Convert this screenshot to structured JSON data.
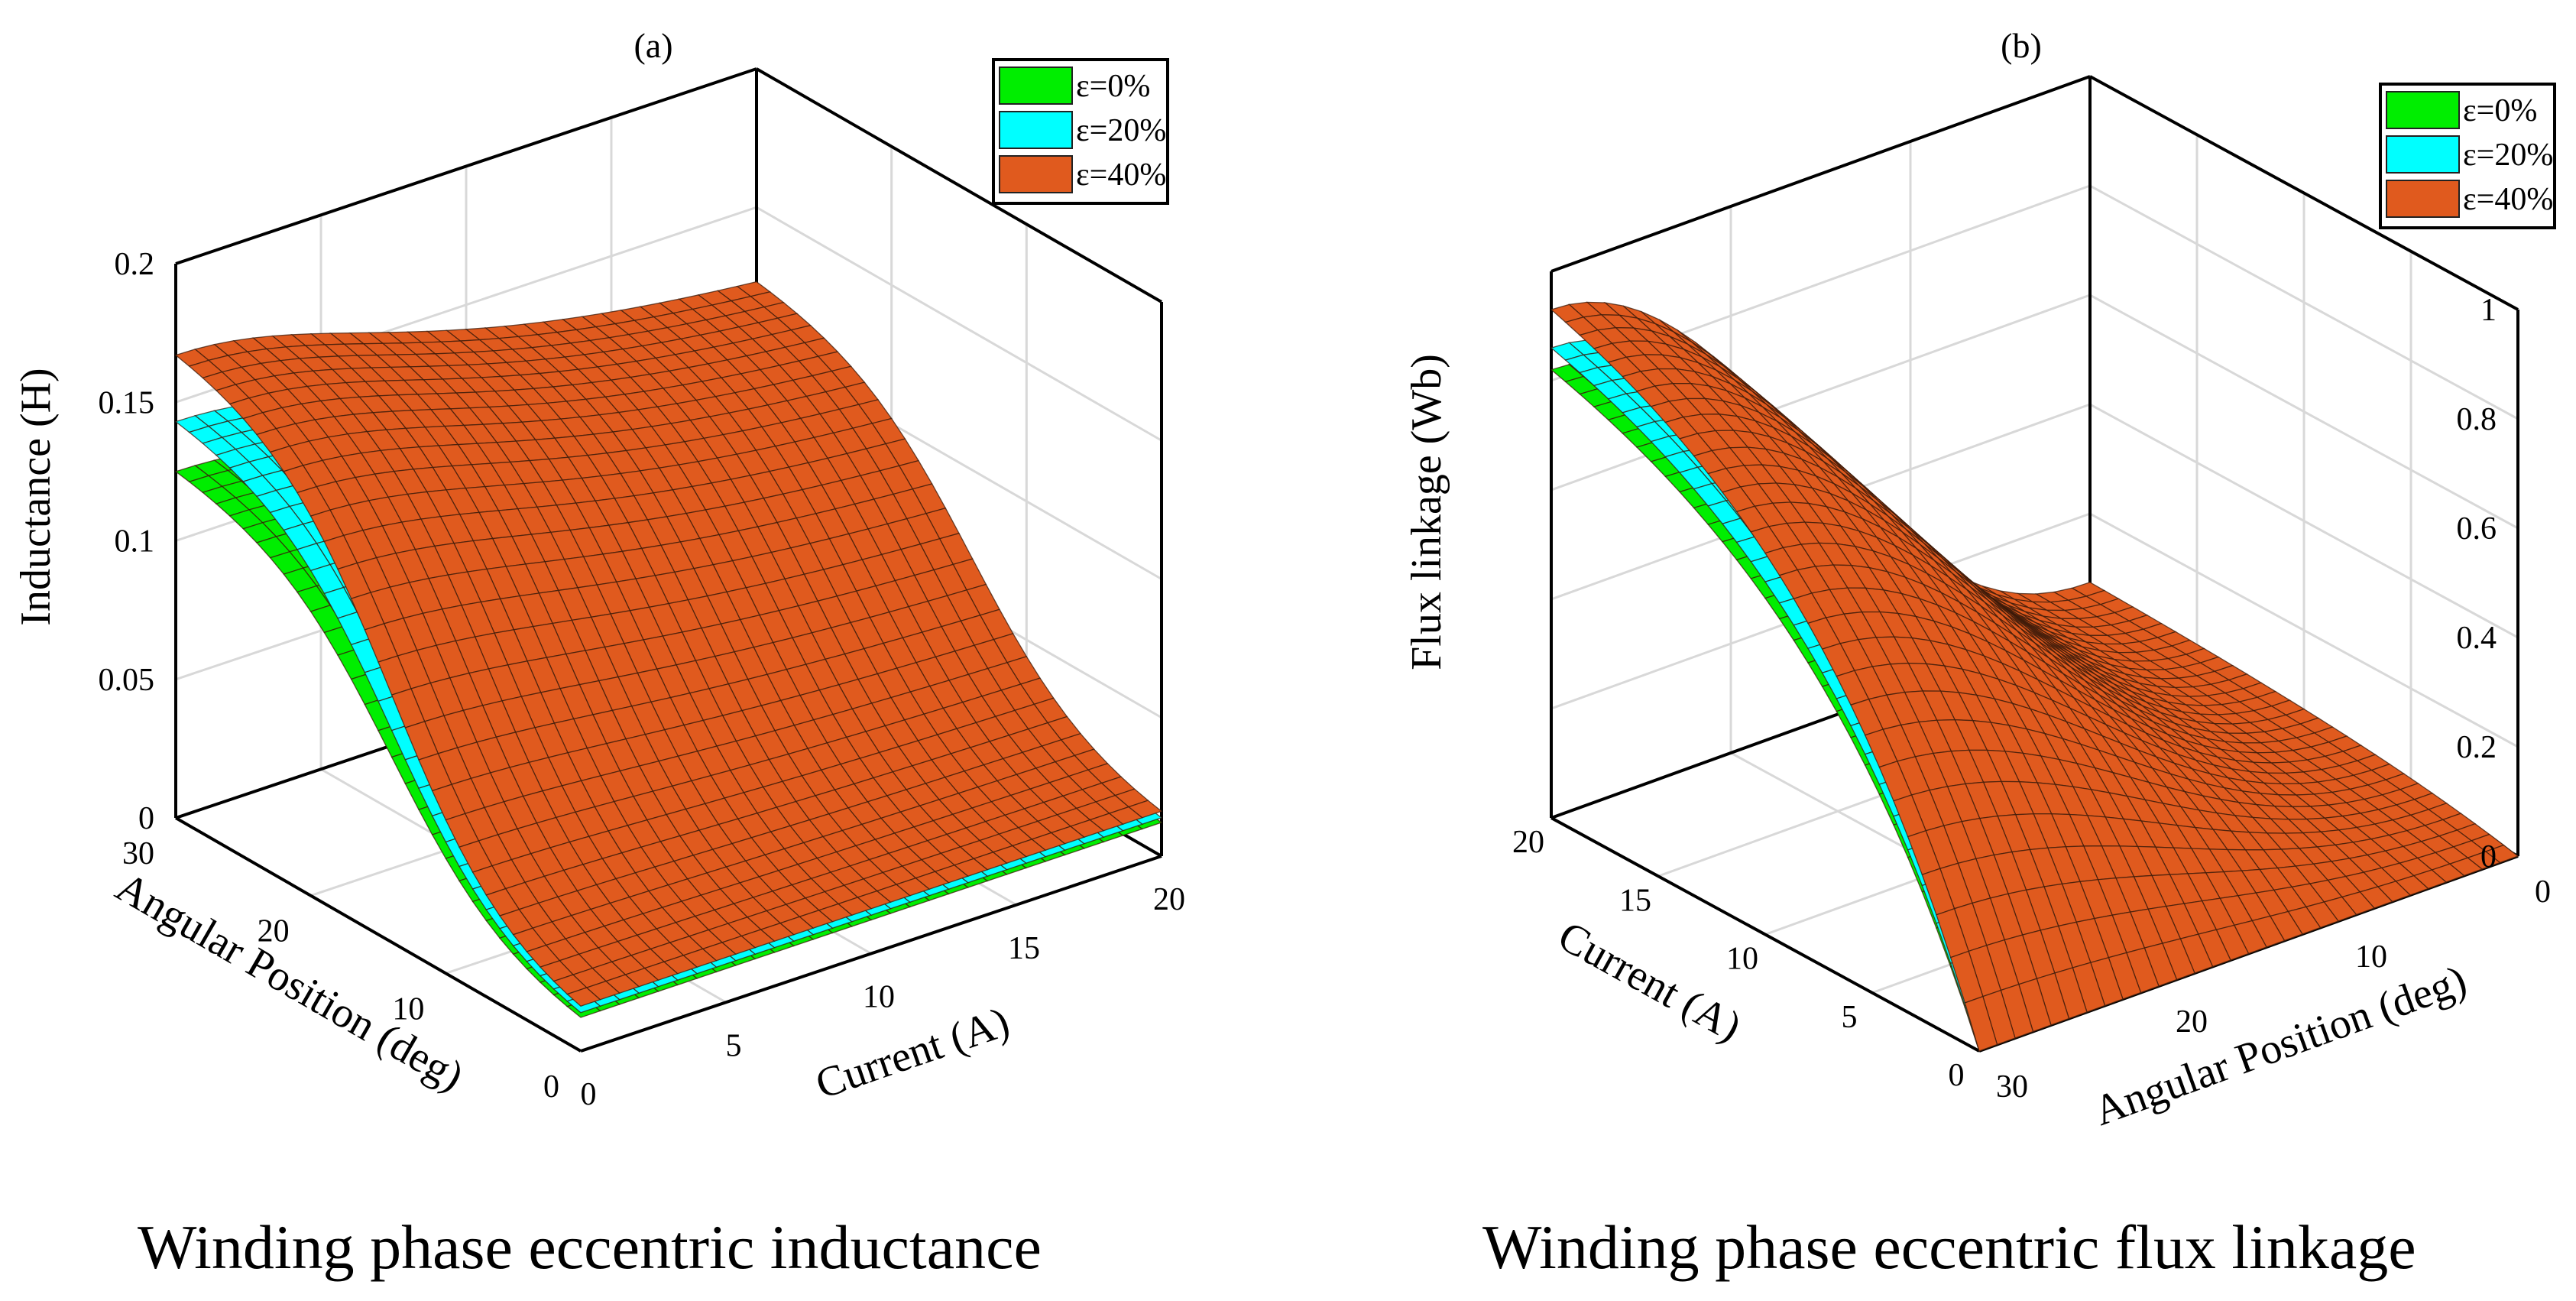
{
  "chart_data": [
    {
      "type": "surface3d",
      "panel_label": "(a)",
      "caption": "Winding phase eccentric inductance",
      "zlabel": "Inductance (H)",
      "xlabel": "Current (A)",
      "ylabel": "Angular Position (deg)",
      "current_ticks": [
        "0",
        "5",
        "10",
        "15",
        "20"
      ],
      "angle_ticks": [
        "0",
        "10",
        "20",
        "30"
      ],
      "z_ticks": [
        "0",
        "0.05",
        "0.1",
        "0.15",
        "0.2"
      ],
      "current_range": [
        0,
        20
      ],
      "angle_range": [
        0,
        30
      ],
      "zlim": [
        0,
        0.2
      ],
      "legend": [
        "ε=0%",
        "ε=20%",
        "ε=40%"
      ],
      "legend_position": "top-right",
      "series": [
        {
          "name": "ε=0%",
          "color": "#00ee00",
          "peak_value": 0.125
        },
        {
          "name": "ε=20%",
          "color": "#00ffff",
          "peak_value": 0.143
        },
        {
          "name": "ε=40%",
          "color": "#e05a1e",
          "peak_value": 0.167
        }
      ]
    },
    {
      "type": "surface3d",
      "panel_label": "(b)",
      "caption": "Winding phase eccentric flux linkage",
      "zlabel": "Flux linkage (Wb)",
      "xlabel": "Current (A)",
      "ylabel": "Angular Position (deg)",
      "current_ticks": [
        "0",
        "5",
        "10",
        "15",
        "20"
      ],
      "angle_ticks": [
        "0",
        "10",
        "20",
        "30"
      ],
      "z_ticks": [
        "0",
        "0.2",
        "0.4",
        "0.6",
        "0.8",
        "1"
      ],
      "current_range": [
        0,
        20
      ],
      "angle_range": [
        0,
        30
      ],
      "zlim": [
        0,
        1
      ],
      "legend": [
        "ε=0%",
        "ε=20%",
        "ε=40%"
      ],
      "legend_position": "top-right",
      "series": [
        {
          "name": "ε=0%",
          "color": "#00ee00",
          "peak_value": 0.82
        },
        {
          "name": "ε=20%",
          "color": "#00ffff",
          "peak_value": 0.86
        },
        {
          "name": "ε=40%",
          "color": "#e05a1e",
          "peak_value": 0.93
        }
      ]
    }
  ]
}
